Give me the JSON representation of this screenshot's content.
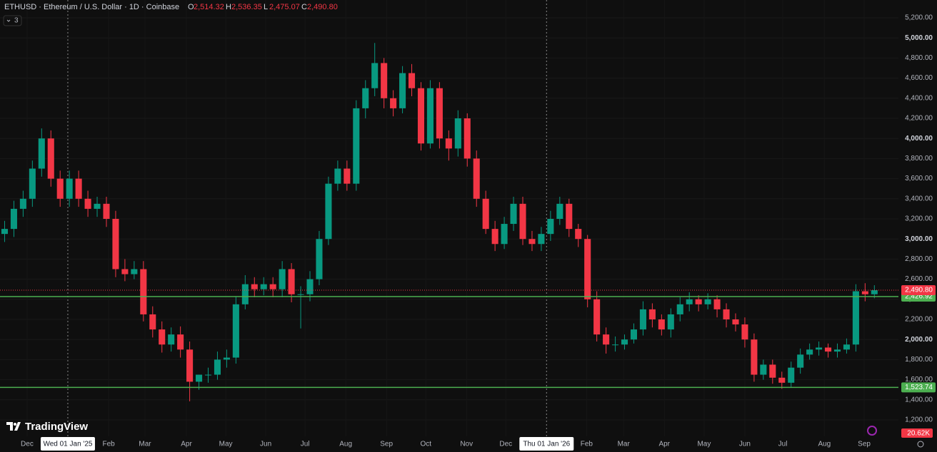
{
  "chart_data": {
    "type": "candlestick",
    "title": "ETHUSD · Ethereum / U.S. Dollar · 1D · Coinbase",
    "ohlc_header": [
      {
        "name": "O",
        "value": "2,514.32"
      },
      {
        "name": "H",
        "value": "2,536.35"
      },
      {
        "name": "L",
        "value": "2,475.07"
      },
      {
        "name": "C",
        "value": "2,490.80"
      }
    ],
    "indicator_count": "3",
    "brand": "TradingView",
    "up_color": "#089981",
    "down_color": "#f23645",
    "open": [
      3050,
      3100,
      3300,
      3400,
      3700,
      4000,
      3600,
      3400,
      3600,
      3400,
      3300,
      3350,
      3200,
      2700,
      2650,
      2700,
      2250,
      2100,
      1950,
      2050,
      1900,
      1580,
      1650,
      1650,
      1800,
      1820,
      2350,
      2550,
      2500,
      2550,
      2500,
      2700,
      2450,
      2450,
      2600,
      3000,
      3550,
      3700,
      3550,
      4300,
      4500,
      4750,
      4400,
      4300,
      4650,
      4500,
      3950,
      4500,
      4000,
      3900,
      4200,
      3800,
      3400,
      3100,
      2950,
      3150,
      3350,
      3000,
      2950,
      3050,
      3200,
      3350,
      3100,
      3000,
      2400,
      2050,
      1950,
      1950,
      2000,
      2100,
      2300,
      2200,
      2100,
      2250,
      2350,
      2400,
      2350,
      2400,
      2300,
      2200,
      2150,
      2000,
      1650,
      1750,
      1620,
      1570,
      1720,
      1850,
      1900,
      1920,
      1880,
      1900,
      1950,
      2480,
      2450
    ],
    "high": [
      3180,
      3380,
      3480,
      3780,
      4100,
      4080,
      3680,
      3680,
      3680,
      3480,
      3420,
      3420,
      3280,
      2800,
      2780,
      2780,
      2330,
      2180,
      2120,
      2130,
      1980,
      1650,
      1720,
      1880,
      1900,
      2430,
      2640,
      2620,
      2620,
      2620,
      2780,
      2760,
      2530,
      2680,
      3080,
      3620,
      3780,
      3780,
      4380,
      4580,
      4950,
      4800,
      4480,
      4720,
      4740,
      4560,
      4580,
      4560,
      4080,
      4280,
      4250,
      3880,
      3480,
      3180,
      3220,
      3420,
      3420,
      3080,
      3120,
      3280,
      3420,
      3400,
      3150,
      3040,
      2480,
      2120,
      2030,
      2050,
      2160,
      2380,
      2360,
      2250,
      2310,
      2420,
      2470,
      2440,
      2460,
      2440,
      2360,
      2260,
      2220,
      2060,
      1800,
      1800,
      1680,
      1780,
      1910,
      1960,
      1980,
      1960,
      1960,
      2010,
      2550,
      2560,
      2540
    ],
    "low": [
      2970,
      3020,
      3220,
      3320,
      3620,
      3520,
      3320,
      3320,
      3320,
      3220,
      3220,
      3120,
      2620,
      2580,
      2600,
      2180,
      2020,
      1870,
      1880,
      1820,
      1385,
      1500,
      1570,
      1600,
      1720,
      1760,
      2300,
      2420,
      2440,
      2420,
      2420,
      2370,
      2110,
      2380,
      2540,
      2940,
      3480,
      3480,
      3480,
      4200,
      4420,
      4300,
      4220,
      4250,
      4420,
      3880,
      3900,
      3900,
      3780,
      3820,
      3720,
      3320,
      3050,
      2880,
      2900,
      3080,
      2940,
      2880,
      2880,
      2980,
      3140,
      3020,
      2920,
      2320,
      1980,
      1860,
      1880,
      1900,
      1960,
      2040,
      2120,
      2040,
      2020,
      2180,
      2280,
      2280,
      2300,
      2220,
      2120,
      2080,
      1920,
      1580,
      1600,
      1560,
      1510,
      1520,
      1660,
      1800,
      1840,
      1820,
      1820,
      1860,
      1880,
      2380,
      2410
    ],
    "close": [
      3100,
      3300,
      3400,
      3700,
      4000,
      3600,
      3400,
      3600,
      3400,
      3300,
      3350,
      3200,
      2700,
      2650,
      2700,
      2250,
      2100,
      1950,
      2050,
      1900,
      1580,
      1650,
      1650,
      1800,
      1820,
      2350,
      2550,
      2500,
      2550,
      2500,
      2700,
      2450,
      2450,
      2600,
      3000,
      3550,
      3700,
      3550,
      4300,
      4500,
      4750,
      4400,
      4300,
      4650,
      4500,
      3950,
      4500,
      4000,
      3900,
      4200,
      3800,
      3400,
      3100,
      2950,
      3150,
      3350,
      3000,
      2950,
      3050,
      3200,
      3350,
      3100,
      3000,
      2400,
      2050,
      1950,
      1950,
      2000,
      2100,
      2300,
      2200,
      2100,
      2250,
      2350,
      2400,
      2350,
      2400,
      2300,
      2200,
      2150,
      2000,
      1650,
      1750,
      1620,
      1570,
      1720,
      1850,
      1900,
      1920,
      1880,
      1900,
      1950,
      2480,
      2450,
      2491
    ],
    "ylim": [
      1200,
      5200
    ],
    "xlim": [
      -0.5,
      96.6
    ],
    "yticks": [
      {
        "value": 1200,
        "label": "1,200.00"
      },
      {
        "value": 1400,
        "label": "1,400.00"
      },
      {
        "value": 1600,
        "label": "1,600.00"
      },
      {
        "value": 1800,
        "label": "1,800.00"
      },
      {
        "value": 2000,
        "label": "2,000.00"
      },
      {
        "value": 2200,
        "label": "2,200.00"
      },
      {
        "value": 2400,
        "label": "2,400.00"
      },
      {
        "value": 2600,
        "label": "2,600.00"
      },
      {
        "value": 2800,
        "label": "2,800.00"
      },
      {
        "value": 3000,
        "label": "3,000.00"
      },
      {
        "value": 3200,
        "label": "3,200.00"
      },
      {
        "value": 3400,
        "label": "3,400.00"
      },
      {
        "value": 3600,
        "label": "3,600.00"
      },
      {
        "value": 3800,
        "label": "3,800.00"
      },
      {
        "value": 4000,
        "label": "4,000.00"
      },
      {
        "value": 4200,
        "label": "4,200.00"
      },
      {
        "value": 4400,
        "label": "4,400.00"
      },
      {
        "value": 4600,
        "label": "4,600.00"
      },
      {
        "value": 4800,
        "label": "4,800.00"
      },
      {
        "value": 5000,
        "label": "5,000.00"
      },
      {
        "value": 5200,
        "label": "5,200.00"
      }
    ],
    "xticks": [
      {
        "value": 2.43,
        "label": "Dec"
      },
      {
        "value": 6.83,
        "label": "Wed 01 Jan '25",
        "highlight": true
      },
      {
        "value": 11.24,
        "label": "Feb"
      },
      {
        "value": 15.17,
        "label": "Mar"
      },
      {
        "value": 19.65,
        "label": "Apr"
      },
      {
        "value": 23.9,
        "label": "May"
      },
      {
        "value": 28.22,
        "label": "Jun"
      },
      {
        "value": 32.47,
        "label": "Jul"
      },
      {
        "value": 36.87,
        "label": "Aug"
      },
      {
        "value": 41.27,
        "label": "Sep"
      },
      {
        "value": 45.52,
        "label": "Oct"
      },
      {
        "value": 49.92,
        "label": "Nov"
      },
      {
        "value": 54.17,
        "label": "Dec"
      },
      {
        "value": 58.57,
        "label": "Thu 01 Jan '26",
        "highlight": true
      },
      {
        "value": 62.9,
        "label": "Feb"
      },
      {
        "value": 66.9,
        "label": "Mar"
      },
      {
        "value": 71.3,
        "label": "Apr"
      },
      {
        "value": 75.6,
        "label": "May"
      },
      {
        "value": 80.0,
        "label": "Jun"
      },
      {
        "value": 84.1,
        "label": "Jul"
      },
      {
        "value": 88.6,
        "label": "Aug"
      },
      {
        "value": 92.9,
        "label": "Sep"
      }
    ],
    "price_lines": [
      {
        "value": 2426.92,
        "label": "2,426.92",
        "color": "#4caf50",
        "style": "solid"
      },
      {
        "value": 1523.74,
        "label": "1,523.74",
        "color": "#4caf50",
        "style": "solid"
      },
      {
        "value": 2490.8,
        "label": "2,490.80",
        "color": "#f23645",
        "style": "dotted"
      }
    ],
    "volume_label": "20.62K"
  }
}
